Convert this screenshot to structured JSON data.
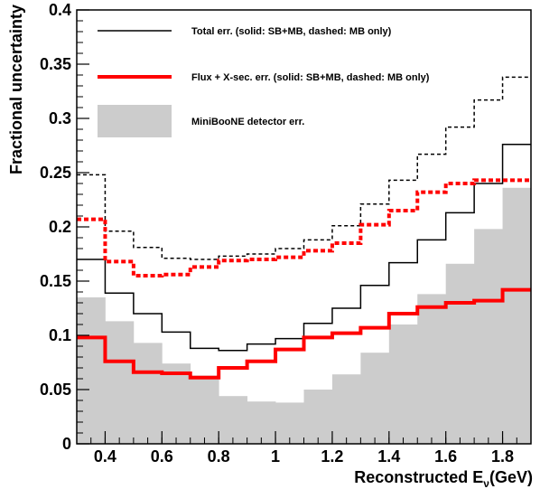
{
  "chart_data": {
    "type": "histogram-step",
    "xlabel": "Reconstructed E",
    "xlabel_sub": "ν",
    "xlabel_unit": "(GeV)",
    "ylabel": "Fractional uncertainty",
    "xlim": [
      0.3,
      1.9
    ],
    "ylim": [
      0,
      0.4
    ],
    "x_ticks": [
      0.4,
      0.6,
      0.8,
      1,
      1.2,
      1.4,
      1.6,
      1.8
    ],
    "x_tick_labels": [
      "0.4",
      "0.6",
      "0.8",
      "1",
      "1.2",
      "1.4",
      "1.6",
      "1.8"
    ],
    "y_ticks": [
      0,
      0.05,
      0.1,
      0.15,
      0.2,
      0.25,
      0.3,
      0.35,
      0.4
    ],
    "y_tick_labels": [
      "0",
      "0.05",
      "0.1",
      "0.15",
      "0.2",
      "0.25",
      "0.3",
      "0.35",
      "0.4"
    ],
    "bin_edges": [
      0.3,
      0.4,
      0.5,
      0.6,
      0.7,
      0.8,
      0.9,
      1.0,
      1.1,
      1.2,
      1.3,
      1.4,
      1.5,
      1.6,
      1.7,
      1.8,
      1.9
    ],
    "series": [
      {
        "name": "MiniBooNE detector err.",
        "style": "filled",
        "color": "#cccccc",
        "values": [
          0.135,
          0.113,
          0.093,
          0.074,
          0.063,
          0.044,
          0.039,
          0.038,
          0.05,
          0.064,
          0.084,
          0.11,
          0.138,
          0.166,
          0.198,
          0.236
        ]
      },
      {
        "name": "Total err. (solid: SB+MB, dashed: MB only)",
        "style": "solid",
        "color": "#000000",
        "values": [
          0.17,
          0.139,
          0.12,
          0.103,
          0.088,
          0.086,
          0.092,
          0.097,
          0.111,
          0.125,
          0.146,
          0.167,
          0.188,
          0.213,
          0.24,
          0.276
        ]
      },
      {
        "name": "Total err. MB only",
        "style": "dashed",
        "color": "#000000",
        "values": [
          0.248,
          0.196,
          0.181,
          0.171,
          0.17,
          0.173,
          0.175,
          0.18,
          0.188,
          0.201,
          0.221,
          0.243,
          0.267,
          0.292,
          0.317,
          0.338
        ]
      },
      {
        "name": "Flux + X-sec. err. (solid: SB+MB, dashed: MB only)",
        "style": "solid-thick",
        "color": "#ff0000",
        "values": [
          0.098,
          0.076,
          0.066,
          0.065,
          0.061,
          0.07,
          0.076,
          0.087,
          0.098,
          0.102,
          0.107,
          0.12,
          0.126,
          0.13,
          0.132,
          0.142
        ]
      },
      {
        "name": "Flux + X-sec. err. MB only",
        "style": "dashed-thick",
        "color": "#ff0000",
        "values": [
          0.207,
          0.168,
          0.155,
          0.156,
          0.163,
          0.169,
          0.17,
          0.172,
          0.178,
          0.185,
          0.202,
          0.215,
          0.232,
          0.24,
          0.243,
          0.243
        ]
      }
    ],
    "legend": [
      {
        "label": "Total err. (solid: SB+MB, dashed: MB only)",
        "kind": "line",
        "color": "#000000"
      },
      {
        "label": "Flux + X-sec. err. (solid: SB+MB, dashed: MB only)",
        "kind": "thick-line",
        "color": "#ff0000"
      },
      {
        "label": "MiniBooNE detector err.",
        "kind": "box",
        "color": "#cccccc"
      }
    ],
    "legend_position": "top-center",
    "grid": false
  }
}
